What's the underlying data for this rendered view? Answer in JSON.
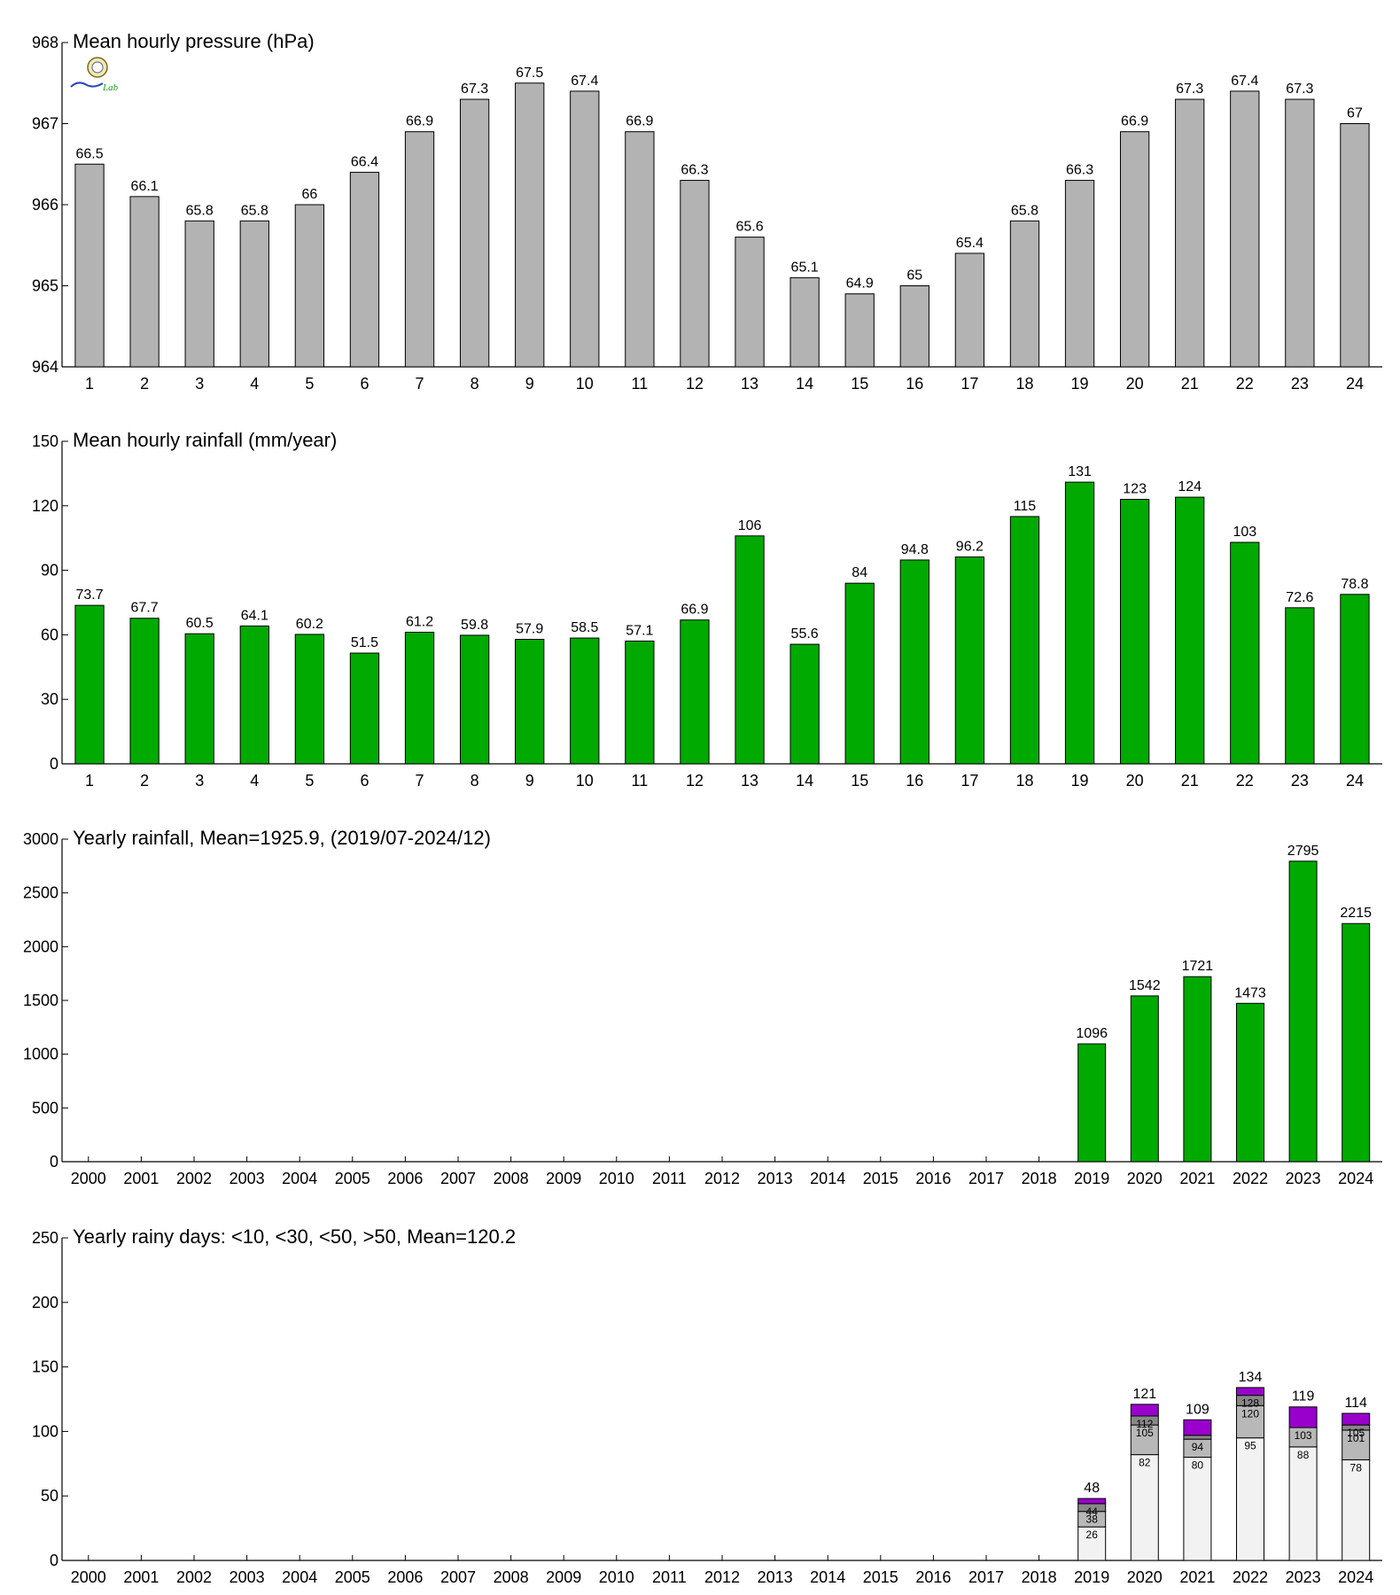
{
  "colors": {
    "pressure_bar": "#b3b3b3",
    "rain_bar": "#00aa00",
    "days_lt10": "#f2f2f2",
    "days_lt30": "#b8b8b8",
    "days_lt50": "#888888",
    "days_gt50": "#9900cc"
  },
  "logo": {
    "icon": "lab-seal-logo-icon",
    "text": "Lab"
  },
  "chart_data": [
    {
      "type": "bar",
      "title": "Mean hourly pressure (hPa)",
      "categories": [
        "1",
        "2",
        "3",
        "4",
        "5",
        "6",
        "7",
        "8",
        "9",
        "10",
        "11",
        "12",
        "13",
        "14",
        "15",
        "16",
        "17",
        "18",
        "19",
        "20",
        "21",
        "22",
        "23",
        "24"
      ],
      "values": [
        966.5,
        966.1,
        965.8,
        965.8,
        966.0,
        966.4,
        966.9,
        967.3,
        967.5,
        967.4,
        966.9,
        966.3,
        965.6,
        965.1,
        964.9,
        965.0,
        965.4,
        965.8,
        966.3,
        966.9,
        967.3,
        967.4,
        967.3,
        967.0
      ],
      "value_labels": [
        "66.5",
        "66.1",
        "65.8",
        "65.8",
        "66",
        "66.4",
        "66.9",
        "67.3",
        "67.5",
        "67.4",
        "66.9",
        "66.3",
        "65.6",
        "65.1",
        "64.9",
        "65",
        "65.4",
        "65.8",
        "66.3",
        "66.9",
        "67.3",
        "67.4",
        "67.3",
        "67"
      ],
      "ylim": [
        964,
        968
      ],
      "yticks": [
        "964",
        "965",
        "966",
        "967",
        "968"
      ],
      "xlabel": "",
      "ylabel": "",
      "grid": false
    },
    {
      "type": "bar",
      "title": "Mean hourly rainfall (mm/year)",
      "categories": [
        "1",
        "2",
        "3",
        "4",
        "5",
        "6",
        "7",
        "8",
        "9",
        "10",
        "11",
        "12",
        "13",
        "14",
        "15",
        "16",
        "17",
        "18",
        "19",
        "20",
        "21",
        "22",
        "23",
        "24"
      ],
      "values": [
        73.7,
        67.7,
        60.5,
        64.1,
        60.2,
        51.5,
        61.2,
        59.8,
        57.9,
        58.5,
        57.1,
        66.9,
        106,
        55.6,
        84,
        94.8,
        96.2,
        115,
        131,
        123,
        124,
        103,
        72.6,
        78.8
      ],
      "value_labels": [
        "73.7",
        "67.7",
        "60.5",
        "64.1",
        "60.2",
        "51.5",
        "61.2",
        "59.8",
        "57.9",
        "58.5",
        "57.1",
        "66.9",
        "106",
        "55.6",
        "84",
        "94.8",
        "96.2",
        "115",
        "131",
        "123",
        "124",
        "103",
        "72.6",
        "78.8"
      ],
      "ylim": [
        0,
        150
      ],
      "yticks": [
        "0",
        "30",
        "60",
        "90",
        "120",
        "150"
      ],
      "xlabel": "",
      "ylabel": "",
      "grid": false
    },
    {
      "type": "bar",
      "title": "Yearly rainfall, Mean=1925.9, (2019/07-2024/12)",
      "categories": [
        "2000",
        "2001",
        "2002",
        "2003",
        "2004",
        "2005",
        "2006",
        "2007",
        "2008",
        "2009",
        "2010",
        "2011",
        "2012",
        "2013",
        "2014",
        "2015",
        "2016",
        "2017",
        "2018",
        "2019",
        "2020",
        "2021",
        "2022",
        "2023",
        "2024"
      ],
      "values": [
        null,
        null,
        null,
        null,
        null,
        null,
        null,
        null,
        null,
        null,
        null,
        null,
        null,
        null,
        null,
        null,
        null,
        null,
        null,
        1096,
        1542,
        1721,
        1473,
        2795,
        2215
      ],
      "value_labels": [
        "",
        "",
        "",
        "",
        "",
        "",
        "",
        "",
        "",
        "",
        "",
        "",
        "",
        "",
        "",
        "",
        "",
        "",
        "",
        "1096",
        "1542",
        "1721",
        "1473",
        "2795",
        "2215"
      ],
      "ylim": [
        0,
        3000
      ],
      "yticks": [
        "0",
        "500",
        "1000",
        "1500",
        "2000",
        "2500",
        "3000"
      ],
      "xlabel": "",
      "ylabel": "",
      "grid": false
    },
    {
      "type": "bar",
      "stacked": true,
      "title": "Yearly rainy days: <10, <30, <50, >50, Mean=120.2",
      "categories": [
        "2000",
        "2001",
        "2002",
        "2003",
        "2004",
        "2005",
        "2006",
        "2007",
        "2008",
        "2009",
        "2010",
        "2011",
        "2012",
        "2013",
        "2014",
        "2015",
        "2016",
        "2017",
        "2018",
        "2019",
        "2020",
        "2021",
        "2022",
        "2023",
        "2024"
      ],
      "cumulative": [
        null,
        null,
        null,
        null,
        null,
        null,
        null,
        null,
        null,
        null,
        null,
        null,
        null,
        null,
        null,
        null,
        null,
        null,
        null,
        [
          26,
          38,
          44,
          48
        ],
        [
          82,
          105,
          112,
          121
        ],
        [
          80,
          94,
          97,
          109
        ],
        [
          95,
          120,
          128,
          134
        ],
        [
          88,
          103,
          103,
          119
        ],
        [
          78,
          101,
          105,
          114
        ]
      ],
      "segment_labels": [
        null,
        null,
        null,
        null,
        null,
        null,
        null,
        null,
        null,
        null,
        null,
        null,
        null,
        null,
        null,
        null,
        null,
        null,
        null,
        [
          "26",
          "38",
          "44",
          "48"
        ],
        [
          "82",
          "105",
          "112",
          "121"
        ],
        [
          "80",
          "94",
          "",
          "109"
        ],
        [
          "95",
          "120",
          "128",
          "134"
        ],
        [
          "88",
          "103",
          "",
          "119"
        ],
        [
          "78",
          "101",
          "105",
          "114"
        ]
      ],
      "ylim": [
        0,
        250
      ],
      "yticks": [
        "0",
        "50",
        "100",
        "150",
        "200",
        "250"
      ],
      "xlabel": "",
      "ylabel": "",
      "grid": false
    }
  ]
}
